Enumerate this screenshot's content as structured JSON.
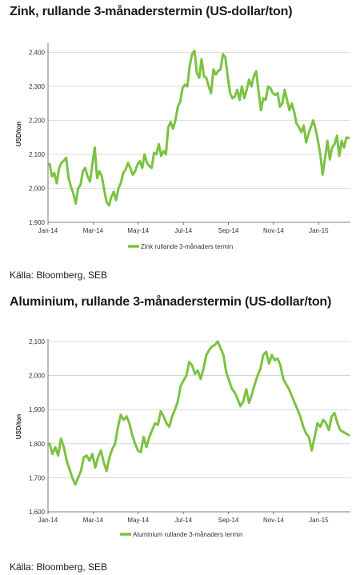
{
  "charts": [
    {
      "title": "Zink, rullande 3-månaderstermin (US-dollar/ton)",
      "source": "Källa: Bloomberg, SEB"
    },
    {
      "title": "Aluminium, rullande 3-månaderstermin (US-dollar/ton)",
      "source": "Källa: Bloomberg, SEB"
    }
  ],
  "colors": {
    "series": "#7cc242",
    "grid": "#bdbdbd",
    "axis": "#555555"
  },
  "chart_data": [
    {
      "type": "line",
      "title": "Zink, rullande 3-månaderstermin (US-dollar/ton)",
      "ylabel": "USD/ton",
      "xlabel": "",
      "ylim": [
        1900,
        2420
      ],
      "yticks": [
        1900,
        2000,
        2100,
        2200,
        2300,
        2400
      ],
      "ytick_labels": [
        "1,900",
        "2,000",
        "2,100",
        "2,200",
        "2,300",
        "2,400"
      ],
      "xtick_labels": [
        "Jan-14",
        "Mar-14",
        "May-14",
        "Jul-14",
        "Sep-14",
        "Nov-14",
        "Jan-15"
      ],
      "grid": true,
      "legend": "bottom-center",
      "series": [
        {
          "name": "Zink rullande 3-månaders termin",
          "values": [
            2072,
            2035,
            2045,
            2015,
            2060,
            2075,
            2082,
            2090,
            2030,
            2005,
            1985,
            1955,
            2000,
            2010,
            2050,
            2060,
            2035,
            2020,
            2070,
            2120,
            2030,
            2050,
            2035,
            1995,
            1960,
            1950,
            1975,
            1990,
            1965,
            2000,
            2015,
            2045,
            2055,
            2075,
            2060,
            2040,
            2050,
            2070,
            2080,
            2060,
            2100,
            2075,
            2065,
            2060,
            2105,
            2100,
            2130,
            2095,
            2110,
            2100,
            2180,
            2195,
            2175,
            2200,
            2240,
            2255,
            2295,
            2305,
            2300,
            2360,
            2395,
            2405,
            2340,
            2325,
            2380,
            2330,
            2325,
            2300,
            2280,
            2350,
            2335,
            2345,
            2350,
            2395,
            2385,
            2330,
            2280,
            2265,
            2270,
            2290,
            2260,
            2300,
            2265,
            2290,
            2320,
            2300,
            2330,
            2345,
            2285,
            2230,
            2265,
            2260,
            2300,
            2295,
            2280,
            2275,
            2280,
            2240,
            2250,
            2290,
            2260,
            2230,
            2250,
            2225,
            2190,
            2180,
            2165,
            2185,
            2135,
            2160,
            2180,
            2200,
            2175,
            2140,
            2100,
            2040,
            2090,
            2140,
            2085,
            2120,
            2130,
            2155,
            2095,
            2140,
            2120,
            2150,
            2148
          ]
        }
      ]
    },
    {
      "type": "line",
      "title": "Aluminium, rullande 3-månaderstermin (US-dollar/ton)",
      "ylabel": "USD/ton",
      "xlabel": "",
      "ylim": [
        1600,
        2100
      ],
      "yticks": [
        1600,
        1700,
        1800,
        1900,
        2000,
        2100
      ],
      "ytick_labels": [
        "1,600",
        "1,700",
        "1,800",
        "1,900",
        "2,000",
        "2,100"
      ],
      "xtick_labels": [
        "Jan-14",
        "Mar-14",
        "May-14",
        "Jul-14",
        "Sep-14",
        "Nov-14",
        "Jan-15"
      ],
      "grid": true,
      "legend": "bottom-center",
      "series": [
        {
          "name": "Aluminium rullande 3-månaders termin",
          "values": [
            1800,
            1770,
            1790,
            1765,
            1815,
            1790,
            1750,
            1725,
            1700,
            1680,
            1700,
            1720,
            1760,
            1765,
            1750,
            1770,
            1730,
            1760,
            1780,
            1745,
            1720,
            1760,
            1785,
            1800,
            1850,
            1885,
            1870,
            1880,
            1860,
            1825,
            1800,
            1780,
            1775,
            1820,
            1790,
            1820,
            1840,
            1860,
            1855,
            1895,
            1880,
            1860,
            1850,
            1880,
            1900,
            1925,
            1970,
            1985,
            2000,
            2040,
            2030,
            2005,
            2015,
            1990,
            2020,
            2060,
            2075,
            2085,
            2090,
            2100,
            2080,
            2060,
            2010,
            1985,
            1960,
            1950,
            1930,
            1910,
            1925,
            1960,
            1920,
            1945,
            1975,
            2000,
            2020,
            2060,
            2070,
            2035,
            2060,
            2045,
            2050,
            2030,
            1990,
            1975,
            1960,
            1940,
            1920,
            1900,
            1880,
            1850,
            1830,
            1820,
            1780,
            1820,
            1860,
            1850,
            1870,
            1860,
            1840,
            1880,
            1890,
            1860,
            1840,
            1835,
            1830,
            1825
          ]
        }
      ]
    }
  ]
}
